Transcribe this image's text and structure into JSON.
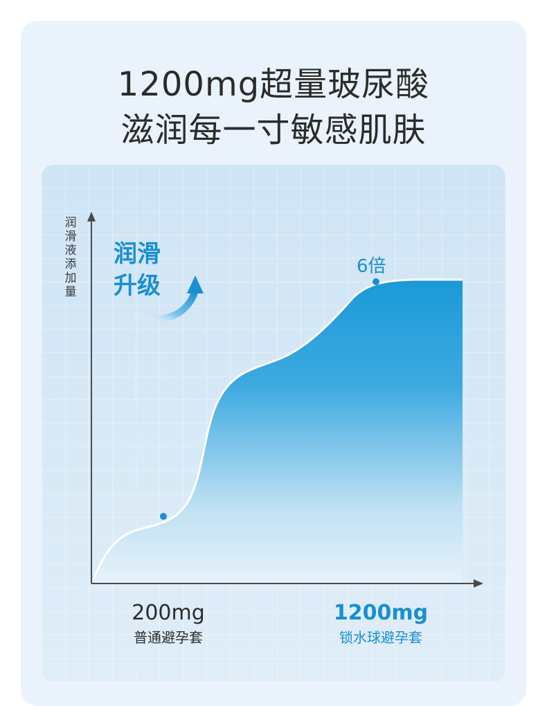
{
  "header": {
    "line1": "1200mg超量玻尿酸",
    "line2": "滋润每一寸敏感肌肤"
  },
  "badge": {
    "line1": "润滑",
    "line2": "升级",
    "icon": "curved-up-arrow-icon"
  },
  "colors": {
    "accent": "#1a8fd0",
    "fill_top": "#1a9ad8",
    "fill_bottom": "#ffffff",
    "text": "#2b2b2b"
  },
  "chart_data": {
    "type": "area",
    "ylabel": "润滑液添加量",
    "xlabel": "",
    "points": [
      {
        "x": "200mg",
        "label": "普通避孕套"
      },
      {
        "x": "1200mg",
        "label": "锁水球避孕套",
        "annotation": "6倍"
      }
    ],
    "relative_values": [
      1,
      6
    ],
    "grid": true,
    "legend": "none"
  }
}
